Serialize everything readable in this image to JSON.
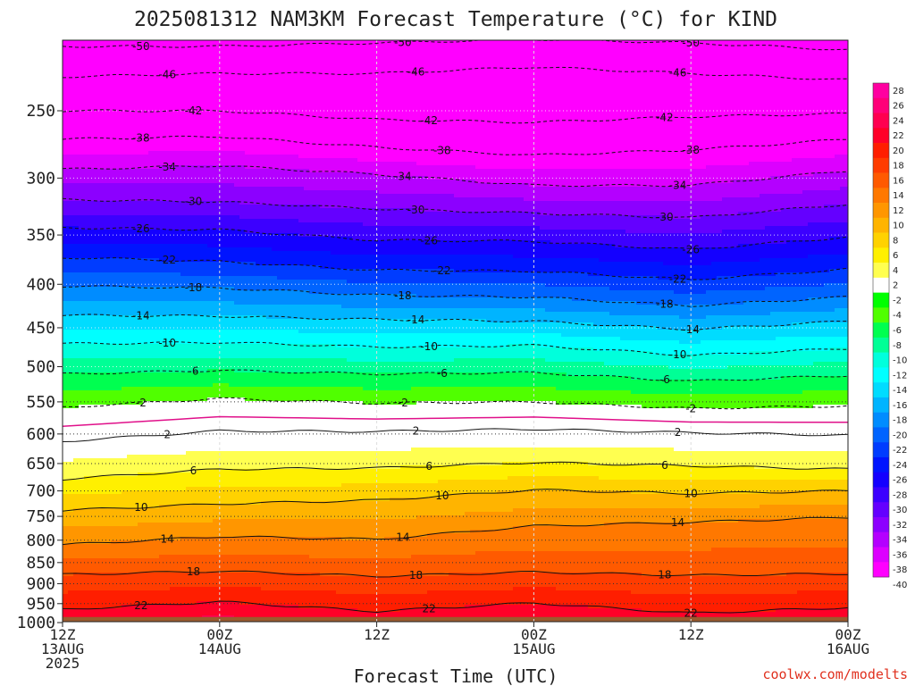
{
  "chart_data": {
    "type": "heatmap",
    "title": "2025081312 NAM3KM Forecast Temperature (°C) for KIND",
    "xlabel": "Forecast Time (UTC)",
    "ylabel": "",
    "credit": "coolwx.com/modelts",
    "y_scale": "log",
    "ylim": [
      1000,
      200
    ],
    "y_ticks": [
      250,
      300,
      350,
      400,
      450,
      500,
      550,
      600,
      650,
      700,
      750,
      800,
      850,
      900,
      950,
      1000
    ],
    "xlim": [
      0,
      60
    ],
    "x_ticks": [
      {
        "hour": 0,
        "lines": [
          "12Z",
          "13AUG",
          "2025"
        ]
      },
      {
        "hour": 12,
        "lines": [
          "00Z",
          "14AUG"
        ]
      },
      {
        "hour": 24,
        "lines": [
          "12Z"
        ]
      },
      {
        "hour": 36,
        "lines": [
          "00Z",
          "15AUG"
        ]
      },
      {
        "hour": 48,
        "lines": [
          "12Z"
        ]
      },
      {
        "hour": 60,
        "lines": [
          "00Z",
          "16AUG"
        ]
      }
    ],
    "colorbar_labels": [
      "28",
      "26",
      "24",
      "22",
      "20",
      "18",
      "16",
      "14",
      "12",
      "10",
      "8",
      "6",
      "4",
      "2",
      "-2",
      "-4",
      "-6",
      "-8",
      "-10",
      "-12",
      "-14",
      "-16",
      "-18",
      "-20",
      "-22",
      "-24",
      "-26",
      "-28",
      "-30",
      "-32",
      "-34",
      "-36",
      "-38",
      "-40"
    ],
    "colorbar_colors": [
      "#ff00a0",
      "#ff0078",
      "#ff0050",
      "#ff0028",
      "#ff1e00",
      "#ff3c00",
      "#ff5a00",
      "#ff7800",
      "#ff9600",
      "#ffb400",
      "#ffd200",
      "#fff000",
      "#ffff50",
      "#ffffff",
      "#00ff00",
      "#50ff00",
      "#00ff50",
      "#00ff96",
      "#00ffdc",
      "#00ffff",
      "#00dcff",
      "#00b4ff",
      "#008cff",
      "#0064ff",
      "#003cff",
      "#0014ff",
      "#1400ff",
      "#3c00ff",
      "#6400ff",
      "#8c00ff",
      "#b400ff",
      "#dc00ff",
      "#ff00ff"
    ],
    "contours": [
      {
        "label": "-50",
        "values": [
          [
            0,
            210
          ],
          [
            12,
            210
          ],
          [
            24,
            208
          ],
          [
            36,
            206
          ],
          [
            48,
            208
          ],
          [
            60,
            212
          ]
        ]
      },
      {
        "label": "-46",
        "values": [
          [
            0,
            228
          ],
          [
            12,
            226
          ],
          [
            24,
            226
          ],
          [
            36,
            222
          ],
          [
            48,
            226
          ],
          [
            60,
            230
          ]
        ]
      },
      {
        "label": "-42",
        "values": [
          [
            0,
            250
          ],
          [
            12,
            250
          ],
          [
            24,
            256
          ],
          [
            36,
            258
          ],
          [
            48,
            254
          ],
          [
            60,
            252
          ]
        ]
      },
      {
        "label": "-38",
        "values": [
          [
            0,
            270
          ],
          [
            12,
            268
          ],
          [
            24,
            276
          ],
          [
            36,
            282
          ],
          [
            48,
            278
          ],
          [
            60,
            270
          ]
        ]
      },
      {
        "label": "-34",
        "values": [
          [
            0,
            293
          ],
          [
            12,
            290
          ],
          [
            24,
            297
          ],
          [
            36,
            306
          ],
          [
            48,
            306
          ],
          [
            60,
            294
          ]
        ]
      },
      {
        "label": "-30",
        "values": [
          [
            0,
            318
          ],
          [
            12,
            320
          ],
          [
            24,
            326
          ],
          [
            36,
            330
          ],
          [
            48,
            334
          ],
          [
            60,
            322
          ]
        ]
      },
      {
        "label": "-26",
        "values": [
          [
            0,
            343
          ],
          [
            12,
            345
          ],
          [
            24,
            355
          ],
          [
            36,
            356
          ],
          [
            48,
            364
          ],
          [
            60,
            352
          ]
        ]
      },
      {
        "label": "-22",
        "values": [
          [
            0,
            372
          ],
          [
            12,
            376
          ],
          [
            24,
            385
          ],
          [
            36,
            386
          ],
          [
            48,
            395
          ],
          [
            60,
            384
          ]
        ]
      },
      {
        "label": "-18",
        "values": [
          [
            0,
            402
          ],
          [
            12,
            404
          ],
          [
            24,
            412
          ],
          [
            36,
            414
          ],
          [
            48,
            424
          ],
          [
            60,
            414
          ]
        ]
      },
      {
        "label": "-14",
        "values": [
          [
            0,
            435
          ],
          [
            12,
            436
          ],
          [
            24,
            440
          ],
          [
            36,
            442
          ],
          [
            48,
            452
          ],
          [
            60,
            442
          ]
        ]
      },
      {
        "label": "-10",
        "values": [
          [
            0,
            470
          ],
          [
            12,
            468
          ],
          [
            24,
            474
          ],
          [
            36,
            472
          ],
          [
            48,
            485
          ],
          [
            60,
            476
          ]
        ]
      },
      {
        "label": "-6",
        "values": [
          [
            0,
            510
          ],
          [
            12,
            505
          ],
          [
            24,
            510
          ],
          [
            36,
            508
          ],
          [
            48,
            520
          ],
          [
            60,
            512
          ]
        ]
      },
      {
        "label": "-2",
        "values": [
          [
            0,
            558
          ],
          [
            12,
            545
          ],
          [
            24,
            552
          ],
          [
            36,
            550
          ],
          [
            48,
            560
          ],
          [
            60,
            556
          ]
        ]
      },
      {
        "label": "2",
        "values": [
          [
            0,
            612
          ],
          [
            12,
            595
          ],
          [
            24,
            596
          ],
          [
            36,
            592
          ],
          [
            48,
            598
          ],
          [
            60,
            602
          ]
        ]
      },
      {
        "label": "6",
        "values": [
          [
            0,
            678
          ],
          [
            12,
            660
          ],
          [
            24,
            658
          ],
          [
            36,
            648
          ],
          [
            48,
            654
          ],
          [
            60,
            660
          ]
        ]
      },
      {
        "label": "10",
        "values": [
          [
            0,
            738
          ],
          [
            12,
            725
          ],
          [
            24,
            718
          ],
          [
            36,
            698
          ],
          [
            48,
            705
          ],
          [
            60,
            700
          ]
        ]
      },
      {
        "label": "14",
        "values": [
          [
            0,
            810
          ],
          [
            12,
            792
          ],
          [
            24,
            798
          ],
          [
            36,
            770
          ],
          [
            48,
            762
          ],
          [
            60,
            752
          ]
        ]
      },
      {
        "label": "18",
        "values": [
          [
            0,
            878
          ],
          [
            12,
            870
          ],
          [
            24,
            882
          ],
          [
            36,
            872
          ],
          [
            48,
            880
          ],
          [
            60,
            876
          ]
        ]
      },
      {
        "label": "22",
        "values": [
          [
            0,
            965
          ],
          [
            12,
            945
          ],
          [
            24,
            970
          ],
          [
            36,
            948
          ],
          [
            48,
            975
          ],
          [
            60,
            960
          ]
        ]
      }
    ]
  }
}
